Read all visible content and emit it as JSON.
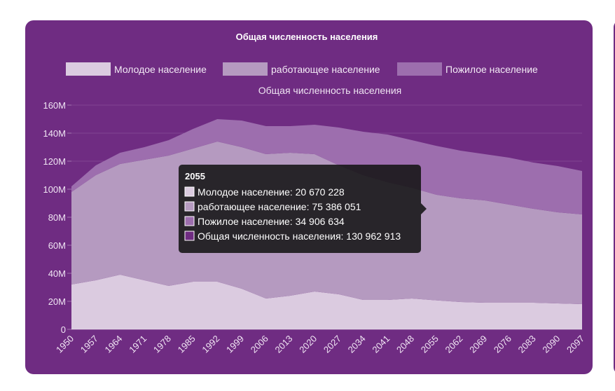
{
  "chart_data": {
    "type": "area",
    "stacked": true,
    "title": "Общая численность населения",
    "subtitle": "Общая численность населения",
    "ylim": [
      0,
      160000000
    ],
    "yticks": [
      "0",
      "20M",
      "40M",
      "60M",
      "80M",
      "100M",
      "120M",
      "140M",
      "160M"
    ],
    "ytick_values": [
      0,
      20000000,
      40000000,
      60000000,
      80000000,
      100000000,
      120000000,
      140000000,
      160000000
    ],
    "x": [
      1950,
      1957,
      1964,
      1971,
      1978,
      1985,
      1992,
      1999,
      2006,
      2013,
      2020,
      2027,
      2034,
      2041,
      2048,
      2055,
      2062,
      2069,
      2076,
      2083,
      2090,
      2097
    ],
    "xtick_labels": [
      "1950",
      "1957",
      "1964",
      "1971",
      "1978",
      "1985",
      "1992",
      "1999",
      "2006",
      "2013",
      "2020",
      "2027",
      "2034",
      "2041",
      "2048",
      "2055",
      "2062",
      "2069",
      "2076",
      "2083",
      "2090",
      "2097"
    ],
    "legend_position": "top",
    "series": [
      {
        "name": "Молодое население",
        "color": "#dbcbe0",
        "values": [
          32000000,
          35000000,
          39000000,
          35000000,
          31000000,
          34000000,
          34000000,
          29000000,
          22000000,
          24000000,
          27000000,
          25000000,
          21000000,
          21000000,
          22000000,
          20670228,
          19500000,
          19000000,
          19000000,
          19000000,
          18500000,
          18000000
        ]
      },
      {
        "name": "работающее население",
        "color": "#b59ac0",
        "values": [
          66000000,
          75000000,
          79000000,
          86000000,
          93000000,
          95000000,
          100000000,
          101000000,
          103000000,
          102000000,
          98000000,
          92000000,
          89000000,
          84000000,
          79000000,
          75386051,
          74000000,
          73000000,
          70000000,
          67000000,
          65000000,
          64000000
        ]
      },
      {
        "name": "Пожилое население",
        "color": "#9d6eae",
        "values": [
          4000000,
          7000000,
          8000000,
          9000000,
          11000000,
          14000000,
          16000000,
          19000000,
          20000000,
          19000000,
          21000000,
          27000000,
          31000000,
          34000000,
          34000000,
          34906634,
          34000000,
          33000000,
          33500000,
          33000000,
          33000000,
          31000000
        ]
      }
    ],
    "tooltip": {
      "title": "2055",
      "lines": [
        {
          "label": "Молодое население: 20 670 228",
          "color": "#dbcbe0"
        },
        {
          "label": "работающее население: 75 386 051",
          "color": "#b59ac0"
        },
        {
          "label": "Пожилое население: 34 906 634",
          "color": "#9d6eae"
        },
        {
          "label": "Общая численность населения: 130 962 913",
          "color": "#6f2c82"
        }
      ]
    }
  }
}
